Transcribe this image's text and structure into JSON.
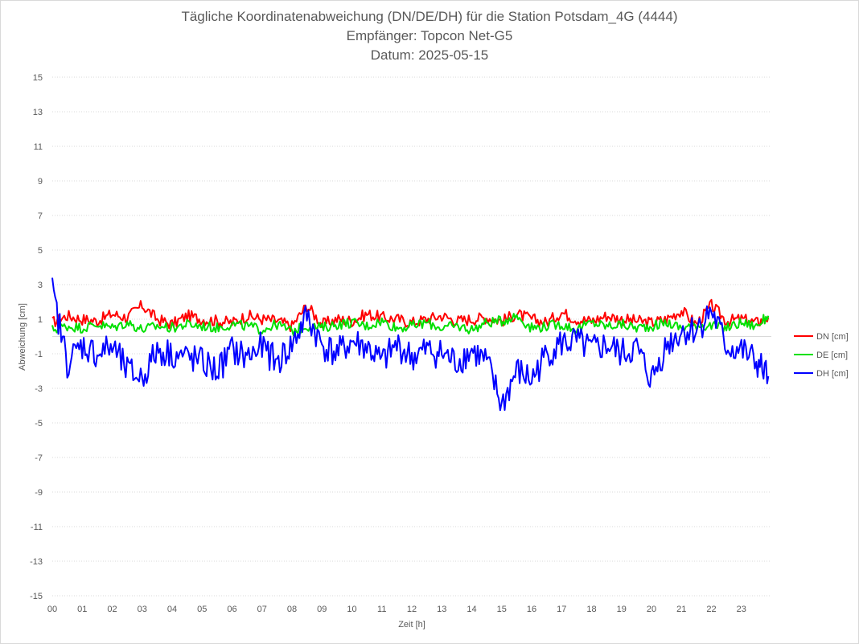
{
  "chart_data": {
    "type": "line",
    "title": "Tägliche Koordinatenabweichung (DN/DE/DH) für die Station Potsdam_4G (4444)",
    "subtitle_1": "Empfänger: Topcon Net-G5",
    "subtitle_2": "Datum: 2025-05-15",
    "xlabel": "Zeit [h]",
    "ylabel": "Abweichung [cm]",
    "ylim": [
      -15,
      15
    ],
    "xlim": [
      0,
      24
    ],
    "y_ticks": [
      "15",
      "13",
      "11",
      "9",
      "7",
      "5",
      "3",
      "1",
      "-1",
      "-3",
      "-5",
      "-7",
      "-9",
      "-11",
      "-13",
      "-15"
    ],
    "x_ticks": [
      "00",
      "01",
      "02",
      "03",
      "04",
      "05",
      "06",
      "07",
      "08",
      "09",
      "10",
      "11",
      "12",
      "13",
      "14",
      "15",
      "16",
      "17",
      "18",
      "19",
      "20",
      "21",
      "22",
      "23"
    ],
    "grid": "horizontal-dotted",
    "legend_position": "right",
    "x": [
      0,
      0.5,
      1,
      1.5,
      2,
      2.5,
      3,
      3.5,
      4,
      4.5,
      5,
      5.5,
      6,
      6.5,
      7,
      7.5,
      8,
      8.5,
      9,
      9.5,
      10,
      10.5,
      11,
      11.5,
      12,
      12.5,
      13,
      13.5,
      14,
      14.5,
      15,
      15.5,
      16,
      16.5,
      17,
      17.5,
      18,
      18.5,
      19,
      19.5,
      20,
      20.5,
      21,
      21.5,
      22,
      22.5,
      23,
      23.5,
      23.9
    ],
    "series": [
      {
        "name": "DN [cm]",
        "color": "#ff0000",
        "values": [
          0.8,
          1.2,
          1.0,
          0.9,
          1.3,
          1.1,
          1.8,
          1.0,
          0.7,
          1.2,
          1.0,
          0.9,
          0.8,
          1.2,
          1.0,
          0.9,
          0.6,
          1.8,
          0.7,
          1.0,
          0.9,
          1.3,
          1.1,
          1.0,
          0.8,
          1.0,
          1.2,
          0.9,
          1.0,
          1.1,
          0.9,
          1.3,
          1.0,
          0.8,
          1.4,
          1.0,
          0.9,
          1.2,
          1.0,
          0.9,
          0.8,
          1.0,
          1.5,
          0.7,
          1.8,
          0.9,
          1.0,
          0.8,
          1.1
        ]
      },
      {
        "name": "DE [cm]",
        "color": "#00e000",
        "values": [
          0.4,
          0.6,
          0.5,
          0.7,
          0.5,
          0.8,
          0.4,
          0.6,
          0.5,
          0.7,
          0.6,
          0.5,
          0.7,
          0.6,
          0.4,
          0.7,
          0.3,
          0.6,
          0.5,
          0.7,
          0.8,
          0.6,
          0.9,
          0.5,
          0.6,
          0.8,
          0.5,
          0.6,
          0.4,
          0.8,
          0.9,
          1.2,
          0.5,
          0.6,
          0.7,
          0.4,
          0.8,
          0.6,
          0.7,
          0.5,
          0.6,
          0.8,
          0.5,
          0.7,
          0.6,
          0.5,
          0.8,
          0.6,
          1.2
        ]
      },
      {
        "name": "DH [cm]",
        "color": "#0000ff",
        "values": [
          2.6,
          -1.5,
          -0.5,
          -1.0,
          -0.6,
          -2.0,
          -2.4,
          -0.8,
          -1.0,
          -1.2,
          -1.5,
          -2.0,
          -0.8,
          -1.2,
          -0.6,
          -1.5,
          -0.5,
          1.2,
          -0.5,
          -1.0,
          -0.3,
          -0.6,
          -1.5,
          -0.5,
          -1.2,
          -0.8,
          -1.0,
          -1.5,
          -0.8,
          -1.5,
          -4.0,
          -2.0,
          -2.5,
          -1.0,
          -0.4,
          -0.3,
          -0.8,
          -0.5,
          -1.0,
          -0.7,
          -2.5,
          -0.5,
          0.3,
          0.4,
          1.5,
          -0.6,
          -0.8,
          -1.5,
          -2.3
        ]
      }
    ]
  }
}
